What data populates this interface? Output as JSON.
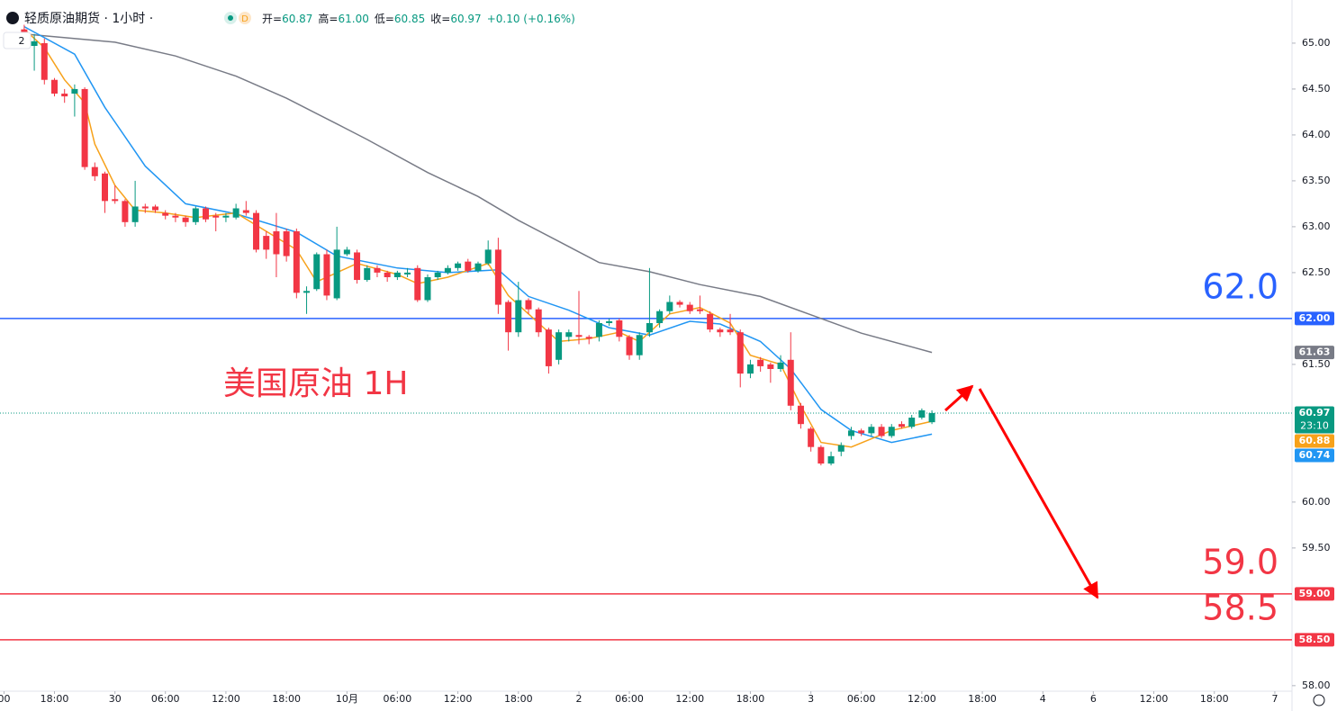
{
  "header": {
    "symbol": "轻质原油期货 · 1小时 ·",
    "badge": "D",
    "indicator_count": "2",
    "ohlc": [
      {
        "k": "开=",
        "v": "60.87"
      },
      {
        "k": "高=",
        "v": "61.00"
      },
      {
        "k": "低=",
        "v": "60.85"
      },
      {
        "k": "收=",
        "v": "60.97"
      }
    ],
    "change": "+0.10 (+0.16%)"
  },
  "chart_data": {
    "type": "candlestick",
    "annotation_text": "美国原油 1H",
    "up_color": "#089981",
    "down_color": "#f23645",
    "x": [
      0,
      1,
      2,
      3,
      4,
      5,
      6,
      7,
      8,
      9,
      10,
      11,
      12,
      13,
      14,
      15,
      16,
      17,
      18,
      19,
      20,
      21,
      22,
      23,
      24,
      25,
      26,
      27,
      28,
      29,
      30,
      31,
      32,
      33,
      34,
      35,
      36,
      37,
      38,
      39,
      40,
      41,
      42,
      43,
      44,
      45,
      46,
      47,
      48,
      49,
      50,
      51,
      52,
      53,
      54,
      55,
      56,
      57,
      58,
      59,
      60,
      61,
      62,
      63,
      64,
      65,
      66,
      67,
      68,
      69,
      70,
      71,
      72,
      73,
      74,
      75,
      76,
      77,
      78,
      79,
      80,
      81,
      82,
      83,
      84,
      85,
      86,
      87,
      88,
      89,
      90
    ],
    "open": [
      65.15,
      64.97,
      65.0,
      64.6,
      64.45,
      64.45,
      64.5,
      63.65,
      63.58,
      63.3,
      63.28,
      63.05,
      63.22,
      63.22,
      63.15,
      63.12,
      63.1,
      63.05,
      63.2,
      63.12,
      63.1,
      63.1,
      63.18,
      63.15,
      62.9,
      62.95,
      62.95,
      62.95,
      62.28,
      62.32,
      62.7,
      62.22,
      62.7,
      62.72,
      62.42,
      62.55,
      62.5,
      62.45,
      62.48,
      62.55,
      62.2,
      62.45,
      62.5,
      62.55,
      62.62,
      62.52,
      62.6,
      62.75,
      62.18,
      61.85,
      62.2,
      62.1,
      61.88,
      61.55,
      61.8,
      61.82,
      61.8,
      61.8,
      61.95,
      61.98,
      61.8,
      61.6,
      61.85,
      61.95,
      62.08,
      62.18,
      62.15,
      62.1,
      62.05,
      61.88,
      61.88,
      61.85,
      61.4,
      61.55,
      61.5,
      61.45,
      61.55,
      61.05,
      60.8,
      60.6,
      60.42,
      60.55,
      60.72,
      60.78,
      60.75,
      60.82,
      60.72,
      60.85,
      60.82,
      60.92,
      60.87
    ],
    "high": [
      65.2,
      65.1,
      65.05,
      64.62,
      64.5,
      64.55,
      64.52,
      63.7,
      63.6,
      63.45,
      63.3,
      63.5,
      63.25,
      63.24,
      63.18,
      63.15,
      63.12,
      63.22,
      63.22,
      63.15,
      63.15,
      63.25,
      63.28,
      63.18,
      62.95,
      63.15,
      62.98,
      62.98,
      62.35,
      62.72,
      62.75,
      63.0,
      62.78,
      62.75,
      62.58,
      62.58,
      62.52,
      62.52,
      62.55,
      62.58,
      62.48,
      62.52,
      62.58,
      62.62,
      62.65,
      62.62,
      62.85,
      62.88,
      62.2,
      62.4,
      62.22,
      62.12,
      61.9,
      61.88,
      61.88,
      62.3,
      61.82,
      61.98,
      62.0,
      62.0,
      61.82,
      61.85,
      62.55,
      62.1,
      62.25,
      62.2,
      62.18,
      62.25,
      62.08,
      61.9,
      62.05,
      61.88,
      61.55,
      61.58,
      61.52,
      61.6,
      61.85,
      61.08,
      60.82,
      60.62,
      60.55,
      60.65,
      60.82,
      60.8,
      60.85,
      60.85,
      60.85,
      60.88,
      60.95,
      61.02,
      61.0
    ],
    "low": [
      64.95,
      64.7,
      64.55,
      64.42,
      64.35,
      64.2,
      63.62,
      63.5,
      63.15,
      63.25,
      63.0,
      63.0,
      63.15,
      63.15,
      63.08,
      63.05,
      63.0,
      63.02,
      63.05,
      62.95,
      63.05,
      63.08,
      63.12,
      62.72,
      62.65,
      62.45,
      62.62,
      62.22,
      62.05,
      62.3,
      62.2,
      62.2,
      62.68,
      62.38,
      62.4,
      62.45,
      62.4,
      62.42,
      62.45,
      62.18,
      62.18,
      62.42,
      62.48,
      62.52,
      62.5,
      62.5,
      62.58,
      62.05,
      61.65,
      61.8,
      62.05,
      61.8,
      61.4,
      61.5,
      61.75,
      61.72,
      61.72,
      61.75,
      61.92,
      61.75,
      61.55,
      61.55,
      61.8,
      61.9,
      62.05,
      62.12,
      62.05,
      62.05,
      61.85,
      61.8,
      61.82,
      61.25,
      61.35,
      61.42,
      61.3,
      61.42,
      61.0,
      60.8,
      60.55,
      60.4,
      60.4,
      60.5,
      60.68,
      60.72,
      60.72,
      60.7,
      60.7,
      60.8,
      60.8,
      60.9,
      60.85
    ],
    "close": [
      65.0,
      65.02,
      64.6,
      64.45,
      64.42,
      64.5,
      63.65,
      63.55,
      63.28,
      63.28,
      63.05,
      63.22,
      63.2,
      63.18,
      63.12,
      63.1,
      63.05,
      63.2,
      63.08,
      63.1,
      63.12,
      63.2,
      63.15,
      62.75,
      62.75,
      62.7,
      62.68,
      62.28,
      62.3,
      62.7,
      62.25,
      62.75,
      62.75,
      62.42,
      62.55,
      62.5,
      62.45,
      62.5,
      62.5,
      62.2,
      62.45,
      62.5,
      62.55,
      62.6,
      62.52,
      62.6,
      62.75,
      62.15,
      61.85,
      62.2,
      62.1,
      61.85,
      61.48,
      61.85,
      61.85,
      61.8,
      61.78,
      61.95,
      61.97,
      61.8,
      61.6,
      61.82,
      61.95,
      62.08,
      62.18,
      62.15,
      62.08,
      62.08,
      61.88,
      61.85,
      61.85,
      61.4,
      61.5,
      61.48,
      61.45,
      61.52,
      61.05,
      60.85,
      60.6,
      60.42,
      60.5,
      60.62,
      60.78,
      60.75,
      60.82,
      60.72,
      60.82,
      60.82,
      60.92,
      61.0,
      60.97
    ],
    "lines": [
      {
        "color": "#787b86",
        "x": [
          0,
          9,
          15,
          21,
          26,
          31,
          34,
          40,
          45,
          49,
          53,
          57,
          62,
          67,
          73,
          78,
          83,
          90
        ],
        "values": [
          65.1,
          65.01,
          64.86,
          64.64,
          64.4,
          64.12,
          63.95,
          63.59,
          63.33,
          63.07,
          62.84,
          62.61,
          62.51,
          62.37,
          62.24,
          62.04,
          61.84,
          61.63
        ]
      },
      {
        "color": "#2196f3",
        "x": [
          0,
          5,
          8,
          12,
          16,
          21,
          27,
          31,
          37,
          42,
          47,
          50,
          54,
          58,
          62,
          66,
          69,
          73,
          76,
          79,
          82,
          86,
          90
        ],
        "values": [
          65.18,
          64.88,
          64.3,
          63.66,
          63.25,
          63.14,
          62.94,
          62.68,
          62.55,
          62.5,
          62.53,
          62.24,
          62.09,
          61.9,
          61.82,
          61.97,
          61.94,
          61.75,
          61.45,
          61.01,
          60.78,
          60.65,
          60.74
        ]
      },
      {
        "color": "#f7a21b",
        "x": [
          0,
          2,
          4,
          6,
          7,
          9,
          11,
          14,
          17,
          21,
          24,
          27,
          29,
          31,
          33,
          37,
          39,
          42,
          46,
          48,
          50,
          53,
          56,
          59,
          61,
          64,
          67,
          70,
          72,
          75,
          77,
          79,
          82,
          86,
          90
        ],
        "values": [
          65.15,
          64.95,
          64.6,
          64.35,
          63.9,
          63.45,
          63.18,
          63.15,
          63.1,
          63.15,
          62.95,
          62.75,
          62.4,
          62.5,
          62.6,
          62.48,
          62.38,
          62.45,
          62.6,
          62.25,
          62.05,
          61.75,
          61.78,
          61.85,
          61.75,
          62.05,
          62.12,
          61.95,
          61.6,
          61.5,
          61.05,
          60.65,
          60.6,
          60.78,
          60.88
        ]
      }
    ],
    "hlines": [
      {
        "value": 62,
        "color": "#2962ff",
        "style": "solid"
      },
      {
        "value": 59,
        "color": "#f23645",
        "style": "solid"
      },
      {
        "value": 58.5,
        "color": "#f23645",
        "style": "solid"
      },
      {
        "value": 60.97,
        "color": "#089981",
        "style": "dotted"
      }
    ],
    "price_labels": [
      {
        "value": 62,
        "label": "62.00",
        "color": "#2962ff"
      },
      {
        "value": 61.63,
        "label": "61.63",
        "color": "#787b86"
      },
      {
        "value": 60.97,
        "label": "60.97",
        "color": "#089981",
        "sub": "23:10"
      },
      {
        "value": 60.88,
        "label": "60.88",
        "color": "#f7a21b"
      },
      {
        "value": 60.74,
        "label": "60.74",
        "color": "#2196f3"
      },
      {
        "value": 59,
        "label": "59.00",
        "color": "#f23645"
      },
      {
        "value": 58.5,
        "label": "58.50",
        "color": "#f23645"
      }
    ],
    "level_texts": [
      {
        "value": 62,
        "text": "62.0",
        "color": "#2962ff"
      },
      {
        "value": 59,
        "text": "59.0",
        "color": "#f23645"
      },
      {
        "value": 58.5,
        "text": "58.5",
        "color": "#f23645"
      }
    ],
    "ylim": [
      57.92,
      65.47
    ],
    "yticks": [
      {
        "value": 65,
        "label": "65.00"
      },
      {
        "value": 64.5,
        "label": "64.50"
      },
      {
        "value": 64,
        "label": "64.00"
      },
      {
        "value": 63.5,
        "label": "63.50"
      },
      {
        "value": 63,
        "label": "63.00"
      },
      {
        "value": 62.5,
        "label": "62.50"
      },
      {
        "value": 61.5,
        "label": "61.50"
      },
      {
        "value": 60,
        "label": "60.00"
      },
      {
        "value": 59.5,
        "label": "59.50"
      },
      {
        "value": 58,
        "label": "58.00"
      }
    ],
    "xlim": [
      -2.4,
      125.7
    ],
    "xticks": [
      {
        "value": -2,
        "label": "00"
      },
      {
        "value": 3,
        "label": "18:00"
      },
      {
        "value": 9,
        "label": "30"
      },
      {
        "value": 14,
        "label": "06:00"
      },
      {
        "value": 20,
        "label": "12:00"
      },
      {
        "value": 26,
        "label": "18:00"
      },
      {
        "value": 32,
        "label": "10月"
      },
      {
        "value": 37,
        "label": "06:00"
      },
      {
        "value": 43,
        "label": "12:00"
      },
      {
        "value": 49,
        "label": "18:00"
      },
      {
        "value": 55,
        "label": "2"
      },
      {
        "value": 60,
        "label": "06:00"
      },
      {
        "value": 66,
        "label": "12:00"
      },
      {
        "value": 72,
        "label": "18:00"
      },
      {
        "value": 78,
        "label": "3"
      },
      {
        "value": 83,
        "label": "06:00"
      },
      {
        "value": 89,
        "label": "12:00"
      },
      {
        "value": 95,
        "label": "18:00"
      },
      {
        "value": 101,
        "label": "4"
      },
      {
        "value": 106,
        "label": "6"
      },
      {
        "value": 112,
        "label": "12:00"
      },
      {
        "value": 118,
        "label": "18:00"
      },
      {
        "value": 124,
        "label": "7"
      }
    ]
  }
}
